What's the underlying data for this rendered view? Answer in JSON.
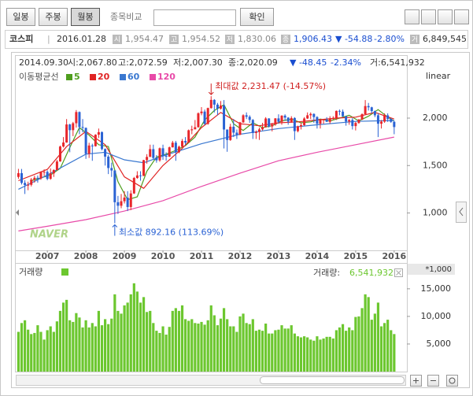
{
  "toolbar": {
    "buttons": [
      "일봉",
      "주봉",
      "월봉"
    ],
    "compare_label": "종목비교",
    "confirm": "확인"
  },
  "quote": {
    "name": "코스피",
    "date": "2016.01.28",
    "fields": [
      {
        "label": "시",
        "value": "1,954.47"
      },
      {
        "label": "고",
        "value": "1,954.52"
      },
      {
        "label": "저",
        "value": "1,830.06"
      },
      {
        "label": "종",
        "value": "1,906.43"
      }
    ],
    "change": "▼ -54.88",
    "percent": "-2.80%",
    "volume_label": "거",
    "volume": "6,849,545"
  },
  "chart_data": {
    "type": "candlestick",
    "info": [
      "2014.09.30",
      "시:2,067.80",
      "고:2,072.59",
      "저:2,007.30",
      "종:2,020.09",
      "▼ -48.45",
      "-2.34%",
      "거:6,541,932"
    ],
    "legend_title": "이동평균선",
    "scale_label": "linear",
    "watermark": "NAVER",
    "up_color": "#e8262b",
    "down_color": "#2a62d4",
    "xlim": [
      2006.18,
      2016.33
    ],
    "xticks": [
      2007,
      2008,
      2009,
      2010,
      2011,
      2012,
      2013,
      2014,
      2015,
      2016
    ],
    "ylim": [
      606,
      2664
    ],
    "yticks": [
      {
        "value": 1000,
        "label": "1,000"
      },
      {
        "value": 1500,
        "label": "1,500"
      },
      {
        "value": 2000,
        "label": "2,000"
      }
    ],
    "x": [
      2006.25,
      2006.333,
      2006.417,
      2006.5,
      2006.583,
      2006.667,
      2006.75,
      2006.833,
      2006.917,
      2007,
      2007.083,
      2007.167,
      2007.25,
      2007.333,
      2007.417,
      2007.5,
      2007.583,
      2007.667,
      2007.75,
      2007.833,
      2007.917,
      2008,
      2008.083,
      2008.167,
      2008.25,
      2008.333,
      2008.417,
      2008.5,
      2008.583,
      2008.667,
      2008.75,
      2008.833,
      2008.917,
      2009,
      2009.083,
      2009.167,
      2009.25,
      2009.333,
      2009.417,
      2009.5,
      2009.583,
      2009.667,
      2009.75,
      2009.833,
      2009.917,
      2010,
      2010.083,
      2010.167,
      2010.25,
      2010.333,
      2010.417,
      2010.5,
      2010.583,
      2010.667,
      2010.75,
      2010.833,
      2010.917,
      2011,
      2011.083,
      2011.167,
      2011.25,
      2011.333,
      2011.417,
      2011.5,
      2011.583,
      2011.667,
      2011.75,
      2011.833,
      2011.917,
      2012,
      2012.083,
      2012.167,
      2012.25,
      2012.333,
      2012.417,
      2012.5,
      2012.583,
      2012.667,
      2012.75,
      2012.833,
      2012.917,
      2013,
      2013.083,
      2013.167,
      2013.25,
      2013.333,
      2013.417,
      2013.5,
      2013.583,
      2013.667,
      2013.75,
      2013.833,
      2013.917,
      2014,
      2014.083,
      2014.167,
      2014.25,
      2014.333,
      2014.417,
      2014.5,
      2014.583,
      2014.667,
      2014.75,
      2014.833,
      2014.917,
      2015,
      2015.083,
      2015.167,
      2015.25,
      2015.333,
      2015.417,
      2015.5,
      2015.583,
      2015.667,
      2015.75,
      2015.833,
      2015.917,
      2016
    ],
    "open": [
      1380,
      1420,
      1317,
      1295,
      1297,
      1352,
      1371,
      1364,
      1432,
      1434,
      1360,
      1417,
      1453,
      1543,
      1700,
      1743,
      1933,
      1873,
      1946,
      2064,
      1906,
      1897,
      1624,
      1711,
      1704,
      1825,
      1852,
      1674,
      1594,
      1474,
      1448,
      1113,
      1076,
      1124,
      1162,
      1063,
      1206,
      1369,
      1396,
      1390,
      1557,
      1591,
      1673,
      1580,
      1555,
      1682,
      1602,
      1594,
      1692,
      1741,
      1641,
      1698,
      1759,
      1742,
      1872,
      1882,
      1904,
      2051,
      2069,
      1939,
      2106,
      2192,
      2142,
      2100,
      2133,
      1880,
      1769,
      1909,
      1847,
      1825,
      1955,
      2030,
      2014,
      1981,
      1843,
      1854,
      1881,
      1905,
      1996,
      1912,
      1932,
      1997,
      1961,
      2026,
      2005,
      1963,
      2001,
      1863,
      1914,
      1926,
      1996,
      2030,
      2044,
      2011,
      1941,
      1980,
      1985,
      1961,
      1995,
      2002,
      2076,
      2068,
      2020,
      1964,
      1981,
      1916,
      1949,
      1985,
      2041,
      2127,
      2114,
      2074,
      2030,
      1941,
      1963,
      2029,
      1991,
      1961
    ],
    "high": [
      1465,
      1464,
      1345,
      1330,
      1370,
      1392,
      1395,
      1440,
      1460,
      1450,
      1470,
      1460,
      1560,
      1710,
      1800,
      1990,
      1940,
      1960,
      2085,
      2070,
      1990,
      1901,
      1740,
      1730,
      1830,
      1890,
      1860,
      1680,
      1610,
      1530,
      1450,
      1180,
      1200,
      1230,
      1230,
      1240,
      1380,
      1440,
      1440,
      1560,
      1620,
      1720,
      1720,
      1610,
      1690,
      1720,
      1640,
      1700,
      1760,
      1760,
      1710,
      1780,
      1800,
      1880,
      1920,
      1980,
      2060,
      2116,
      2090,
      2110,
      2231,
      2200,
      2160,
      2180,
      2190,
      1880,
      1940,
      1990,
      1880,
      1960,
      2040,
      2060,
      2030,
      1990,
      1870,
      1900,
      1950,
      2010,
      2000,
      1950,
      2000,
      2040,
      2030,
      2040,
      2010,
      2020,
      2010,
      1920,
      1950,
      2010,
      2060,
      2060,
      2050,
      2020,
      1980,
      1990,
      2010,
      2020,
      2020,
      2080,
      2090,
      2090,
      2020,
      1990,
      2000,
      1960,
      1990,
      2050,
      2190,
      2160,
      2120,
      2080,
      2050,
      1980,
      2050,
      2050,
      2000,
      1970
    ],
    "low": [
      1360,
      1300,
      1200,
      1240,
      1280,
      1320,
      1320,
      1350,
      1390,
      1345,
      1350,
      1380,
      1450,
      1540,
      1690,
      1740,
      1640,
      1810,
      1900,
      1830,
      1850,
      1570,
      1580,
      1550,
      1700,
      1790,
      1660,
      1500,
      1410,
      1380,
      892,
      990,
      1050,
      1100,
      1020,
      1030,
      1200,
      1360,
      1340,
      1390,
      1520,
      1590,
      1560,
      1530,
      1540,
      1560,
      1550,
      1590,
      1690,
      1550,
      1630,
      1690,
      1720,
      1740,
      1830,
      1880,
      1900,
      2030,
      1930,
      1930,
      2100,
      2060,
      2030,
      2090,
      1680,
      1645,
      1760,
      1800,
      1780,
      1820,
      1950,
      1990,
      1950,
      1780,
      1780,
      1770,
      1870,
      1900,
      1900,
      1860,
      1920,
      1940,
      1930,
      1970,
      1930,
      1950,
      1770,
      1850,
      1880,
      1920,
      1990,
      1990,
      1950,
      1890,
      1890,
      1940,
      1960,
      1940,
      1980,
      1980,
      2030,
      2010,
      1920,
      1930,
      1880,
      1870,
      1940,
      1980,
      2040,
      2080,
      2050,
      2010,
      1800,
      1890,
      1950,
      1960,
      1950,
      1830
    ],
    "close": [
      1420,
      1317,
      1295,
      1297,
      1352,
      1371,
      1364,
      1432,
      1434,
      1360,
      1417,
      1453,
      1543,
      1700,
      1743,
      1933,
      1873,
      1946,
      2064,
      1906,
      1897,
      1624,
      1711,
      1704,
      1825,
      1852,
      1674,
      1594,
      1474,
      1448,
      1113,
      1076,
      1124,
      1162,
      1063,
      1206,
      1369,
      1396,
      1390,
      1557,
      1591,
      1673,
      1580,
      1555,
      1682,
      1602,
      1594,
      1692,
      1741,
      1641,
      1698,
      1759,
      1742,
      1872,
      1882,
      1904,
      2051,
      2069,
      1939,
      2106,
      2192,
      2142,
      2100,
      2133,
      1880,
      1769,
      1909,
      1847,
      1825,
      1955,
      2030,
      2014,
      1981,
      1843,
      1854,
      1881,
      1905,
      1996,
      1912,
      1932,
      1997,
      1961,
      2026,
      2005,
      1963,
      2001,
      1863,
      1914,
      1926,
      1996,
      2030,
      2044,
      2011,
      1941,
      1980,
      1985,
      1961,
      1995,
      2002,
      2076,
      2068,
      2020,
      1964,
      1981,
      1916,
      1949,
      1985,
      2041,
      2127,
      2114,
      2074,
      2030,
      1941,
      1963,
      2029,
      1991,
      1961,
      1906
    ],
    "series": [
      {
        "name": "5",
        "color": "#4f9e1e",
        "x": [
          2006.583,
          2006.833,
          2007.083,
          2007.333,
          2007.583,
          2007.833,
          2008.083,
          2008.333,
          2008.583,
          2008.833,
          2009.083,
          2009.333,
          2009.583,
          2009.833,
          2010.083,
          2010.333,
          2010.583,
          2010.833,
          2011.083,
          2011.333,
          2011.583,
          2011.833,
          2012.083,
          2012.333,
          2012.583,
          2012.833,
          2013.083,
          2013.333,
          2013.583,
          2013.833,
          2014.083,
          2014.333,
          2014.583,
          2014.833,
          2015.083,
          2015.333,
          2015.583,
          2015.833,
          2016
        ],
        "values": [
          1340,
          1370,
          1400,
          1470,
          1690,
          1900,
          1820,
          1720,
          1700,
          1330,
          1140,
          1170,
          1440,
          1590,
          1620,
          1660,
          1710,
          1800,
          1980,
          2080,
          2140,
          1940,
          1870,
          1950,
          1900,
          1920,
          1970,
          1990,
          1950,
          1960,
          1990,
          1970,
          2000,
          2030,
          1970,
          2020,
          2090,
          2010,
          1970
        ]
      },
      {
        "name": "20",
        "color": "#e02424",
        "x": [
          2006.25,
          2007,
          2007.5,
          2008,
          2008.5,
          2009,
          2009.5,
          2010,
          2010.5,
          2011,
          2011.5,
          2012,
          2012.5,
          2013,
          2013.5,
          2014,
          2014.5,
          2015,
          2015.5,
          2016
        ],
        "values": [
          1340,
          1460,
          1700,
          1860,
          1720,
          1380,
          1260,
          1500,
          1680,
          1900,
          2060,
          1940,
          1920,
          1950,
          1960,
          1980,
          2000,
          2010,
          2060,
          1990
        ]
      },
      {
        "name": "60",
        "color": "#3a78d0",
        "x": [
          2006.25,
          2007,
          2008,
          2008.5,
          2009,
          2009.5,
          2010,
          2011,
          2012,
          2013,
          2014,
          2015,
          2016
        ],
        "values": [
          1250,
          1400,
          1620,
          1640,
          1560,
          1530,
          1600,
          1730,
          1830,
          1890,
          1930,
          1965,
          1975
        ]
      },
      {
        "name": "120",
        "color": "#e84aa8",
        "x": [
          2006.25,
          2007,
          2008,
          2009,
          2010,
          2011,
          2012,
          2013,
          2014,
          2015,
          2016
        ],
        "values": [
          810,
          860,
          930,
          1020,
          1130,
          1280,
          1420,
          1550,
          1640,
          1720,
          1800
        ]
      }
    ],
    "annotations": [
      {
        "text": "최대값 2,231.47 (-14.57%)",
        "x": 2011.25,
        "value": 2231.47,
        "color": "#d02020"
      },
      {
        "text": "최소값 892.16 (113.69%)",
        "x": 2008.75,
        "value": 892.16,
        "color": "#2a62d4"
      }
    ],
    "volume": {
      "name": "거래량",
      "color": "#6cc72f",
      "unit": "*1,000",
      "current_label": "거래량:",
      "current": "6,541,932",
      "values": [
        7200,
        8800,
        9300,
        7600,
        6800,
        7000,
        8400,
        7200,
        5800,
        7500,
        8200,
        7200,
        9100,
        11000,
        12500,
        13000,
        9300,
        9000,
        10600,
        9800,
        8000,
        9300,
        8000,
        8800,
        8200,
        11000,
        8400,
        9500,
        8600,
        9600,
        14000,
        11000,
        10500,
        12000,
        12500,
        14000,
        16000,
        14500,
        12500,
        13500,
        10800,
        11000,
        8800,
        7400,
        7000,
        8200,
        6700,
        8100,
        11000,
        11500,
        11000,
        12000,
        9500,
        9200,
        9500,
        8800,
        8700,
        9000,
        8500,
        9300,
        12000,
        10200,
        8400,
        9600,
        11500,
        9500,
        8200,
        8200,
        7200,
        10000,
        10500,
        8800,
        8600,
        9500,
        7400,
        7600,
        7400,
        8700,
        6900,
        6900,
        7500,
        7600,
        8400,
        7800,
        7800,
        8400,
        6900,
        6400,
        6200,
        6400,
        6200,
        5800,
        5600,
        6400,
        5800,
        6000,
        6300,
        6300,
        6000,
        7500,
        8000,
        8600,
        7400,
        8000,
        7500,
        9900,
        10000,
        11500,
        14000,
        13500,
        9400,
        10500,
        12500,
        8200,
        8800,
        9400,
        7500,
        6800
      ]
    },
    "y2lim": [
      0,
      19400
    ],
    "y2ticks": [
      {
        "value": 5000,
        "label": "5,000"
      },
      {
        "value": 10000,
        "label": "10,000"
      },
      {
        "value": 15000,
        "label": "15,000"
      }
    ]
  }
}
